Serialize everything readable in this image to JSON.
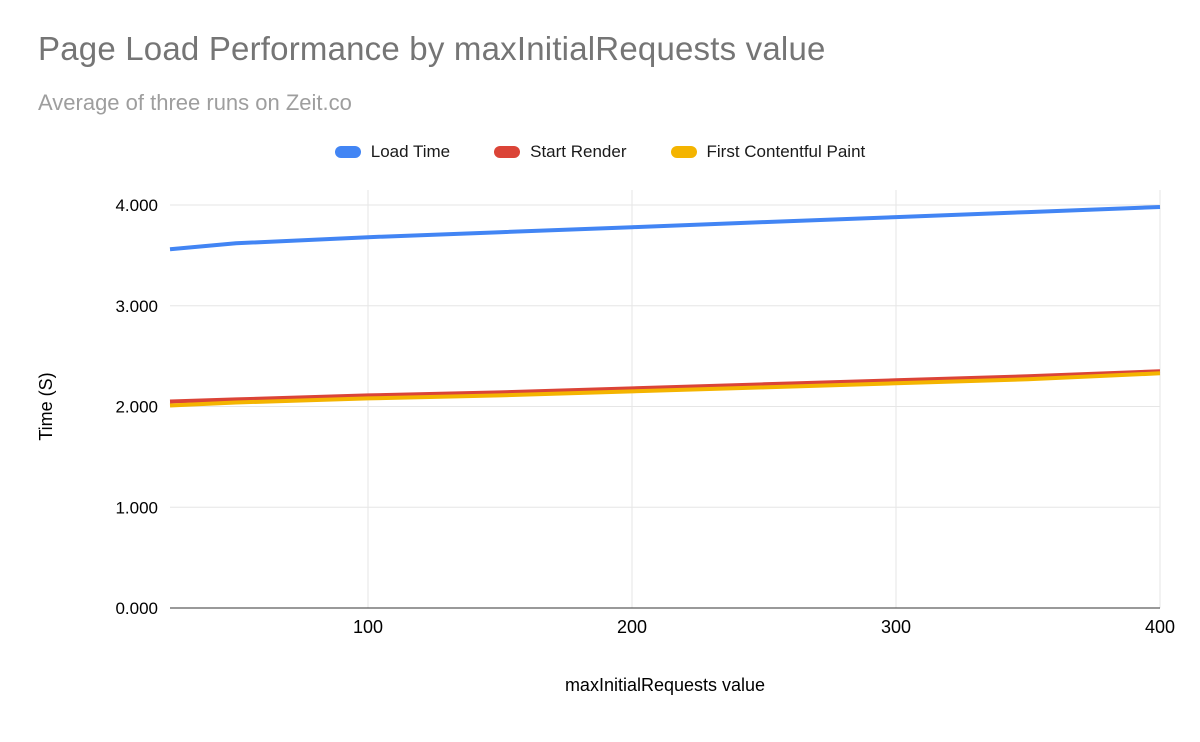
{
  "title": "Page Load Performance by maxInitialRequests value",
  "subtitle": "Average of three runs on Zeit.co",
  "legend": [
    {
      "label": "Load Time",
      "color": "#4285f4"
    },
    {
      "label": "Start Render",
      "color": "#db4437"
    },
    {
      "label": "First Contentful Paint",
      "color": "#f4b400"
    }
  ],
  "axes": {
    "x_title": "maxInitialRequests value",
    "y_title": "Time (S)"
  },
  "chart_data": {
    "type": "line",
    "title": "Page Load Performance by maxInitialRequests value",
    "subtitle": "Average of three runs on Zeit.co",
    "xlabel": "maxInitialRequests value",
    "ylabel": "Time (S)",
    "x": [
      25,
      50,
      100,
      150,
      200,
      250,
      300,
      350,
      400
    ],
    "series": [
      {
        "name": "Load Time",
        "color": "#4285f4",
        "values": [
          3.56,
          3.62,
          3.68,
          3.73,
          3.78,
          3.83,
          3.88,
          3.93,
          3.98
        ]
      },
      {
        "name": "Start Render",
        "color": "#db4437",
        "values": [
          2.05,
          2.07,
          2.11,
          2.14,
          2.18,
          2.22,
          2.26,
          2.3,
          2.35
        ]
      },
      {
        "name": "First Contentful Paint",
        "color": "#f4b400",
        "values": [
          2.01,
          2.04,
          2.08,
          2.11,
          2.15,
          2.19,
          2.23,
          2.27,
          2.33
        ]
      }
    ],
    "xlim": [
      25,
      400
    ],
    "ylim": [
      0,
      4
    ],
    "x_ticks": [
      100,
      200,
      300,
      400
    ],
    "y_ticks": [
      0,
      1,
      2,
      3,
      4
    ],
    "y_tick_decimals": 3,
    "grid": true,
    "legend_position": "top",
    "colors": {
      "gridline": "#e6e6e6",
      "axis_line": "#333333",
      "title": "#757575",
      "subtitle": "#9e9e9e"
    }
  }
}
